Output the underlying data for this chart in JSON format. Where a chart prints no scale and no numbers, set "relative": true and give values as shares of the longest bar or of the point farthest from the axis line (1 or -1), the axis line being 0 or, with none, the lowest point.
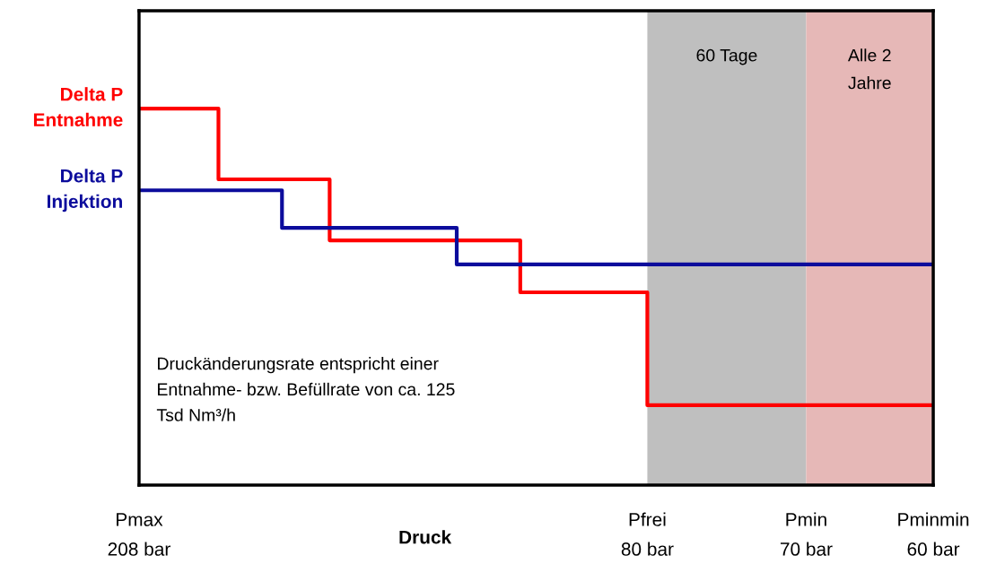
{
  "chart_data": {
    "type": "step",
    "relative": true,
    "xlabel": "Druck",
    "categories": [
      "Pmax\n208 bar",
      null,
      null,
      null,
      null,
      null,
      null,
      null,
      null,
      null,
      null,
      null,
      null,
      null,
      null,
      null,
      null,
      null,
      null,
      null,
      null,
      null,
      null,
      null,
      null,
      null,
      null,
      null,
      null,
      null,
      null,
      null,
      "Pfrei\n80 bar",
      null,
      null,
      null,
      null,
      null,
      null,
      null,
      null,
      null,
      "Pmin\n70 bar",
      null,
      null,
      null,
      null,
      null,
      null,
      null,
      "Pminmin\n60 bar"
    ],
    "series": [
      {
        "name": "Delta P\nEntnahme",
        "color": "#ff0000",
        "values": [
          1,
          1,
          1,
          1,
          1,
          0.812,
          0.812,
          0.812,
          0.812,
          0.812,
          0.812,
          0.812,
          0.65,
          0.65,
          0.65,
          0.65,
          0.65,
          0.65,
          0.65,
          0.65,
          0.65,
          0.65,
          0.65,
          0.65,
          0.512,
          0.512,
          0.512,
          0.512,
          0.512,
          0.512,
          0.512,
          0.512,
          0.212,
          0.212,
          0.212,
          0.212,
          0.212,
          0.212,
          0.212,
          0.212,
          0.212,
          0.212,
          0.212,
          0.212,
          0.212,
          0.212,
          0.212,
          0.212,
          0.212,
          0.212,
          0.212
        ]
      },
      {
        "name": "Delta P\nInjektion",
        "color": "#0c0c9c",
        "values": [
          0.783,
          0.783,
          0.783,
          0.783,
          0.783,
          0.783,
          0.783,
          0.783,
          0.783,
          0.683,
          0.683,
          0.683,
          0.683,
          0.683,
          0.683,
          0.683,
          0.683,
          0.683,
          0.683,
          0.683,
          0.586,
          0.586,
          0.586,
          0.586,
          0.586,
          0.586,
          0.586,
          0.586,
          0.586,
          0.586,
          0.586,
          0.586,
          0.586,
          0.586,
          0.586,
          0.586,
          0.586,
          0.586,
          0.586,
          0.586,
          0.586,
          0.586,
          0.586,
          0.586,
          0.586,
          0.586,
          0.586,
          0.586,
          0.586,
          0.586,
          0.586
        ]
      }
    ],
    "bands": [
      {
        "axis": "x",
        "from": "Pfrei\n80 bar",
        "to": "Pmin\n70 bar",
        "label": "60 Tage",
        "color": "#bfbfbf"
      },
      {
        "axis": "x",
        "from": "Pmin\n70 bar",
        "to": "Pminmin\n60 bar",
        "label": "Alle 2\nJahre",
        "color": "#e6b8b7"
      }
    ],
    "annotations": [
      "Druckänderungsrate entspricht einer\nEntnahme- bzw. Befüllrate von ca. 125\nTsd Nm³/h"
    ]
  }
}
